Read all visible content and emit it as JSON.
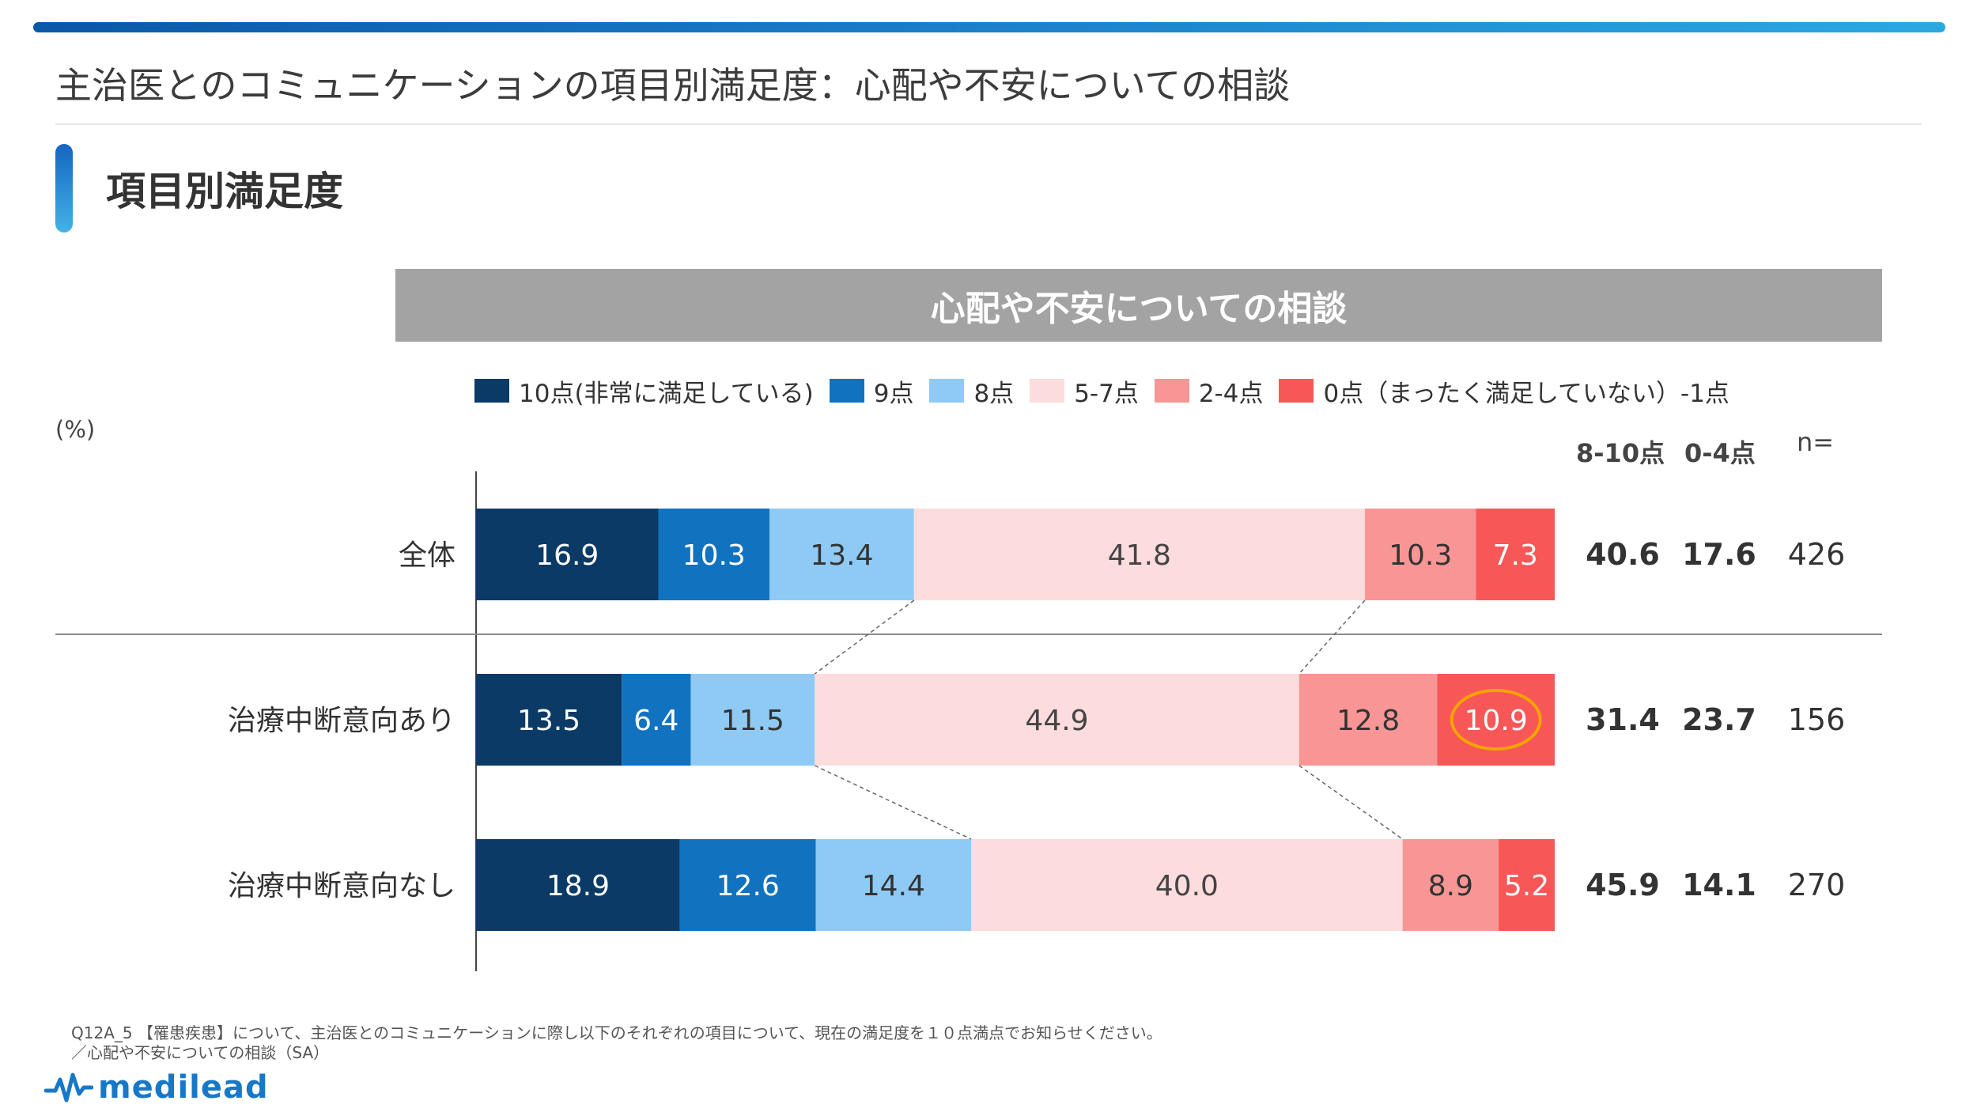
{
  "page": {
    "title": "主治医とのコミュニケーションの項目別満足度：心配や不安についての相談",
    "section_title": "項目別満足度",
    "unit_label": "(%)",
    "footnote_line1": "Q12A_5 【罹患疾患】について、主治医とのコミュニケーションに際し以下のそれぞれの項目について、現在の満足度を１０点満点でお知らせください。",
    "footnote_line2": "／心配や不安についての相談（SA）",
    "logo_text": "medilead"
  },
  "chart_data": {
    "type": "bar",
    "orientation": "horizontal-stacked-100",
    "title": "心配や不安についての相談",
    "categories": [
      "全体",
      "治療中断意向あり",
      "治療中断意向なし"
    ],
    "series": [
      {
        "name": "10点(非常に満足している)",
        "color": "#0b3a66",
        "values": [
          16.9,
          13.5,
          18.9
        ]
      },
      {
        "name": "9点",
        "color": "#1172bf",
        "values": [
          10.3,
          6.4,
          12.6
        ]
      },
      {
        "name": "8点",
        "color": "#8fcaf5",
        "values": [
          13.4,
          11.5,
          14.4
        ]
      },
      {
        "name": "5-7点",
        "color": "#fcdcdc",
        "values": [
          41.8,
          44.9,
          40.0
        ]
      },
      {
        "name": "2-4点",
        "color": "#f89696",
        "values": [
          10.3,
          12.8,
          8.9
        ]
      },
      {
        "name": "0点（まったく満足していない）-1点",
        "color": "#f75757",
        "values": [
          7.3,
          10.9,
          5.2
        ]
      }
    ],
    "label_colors": [
      "#ffffff",
      "#ffffff",
      "#333333",
      "#444444",
      "#333333",
      "#ffffff"
    ],
    "highlight": {
      "category_index": 1,
      "series_index": 5,
      "color": "#f5a300"
    },
    "summary_columns": {
      "headers": [
        "8-10点",
        "0-4点",
        "n="
      ],
      "values": [
        [
          "40.6",
          "17.6",
          "426"
        ],
        [
          "31.4",
          "23.7",
          "156"
        ],
        [
          "45.9",
          "14.1",
          "270"
        ]
      ]
    }
  }
}
